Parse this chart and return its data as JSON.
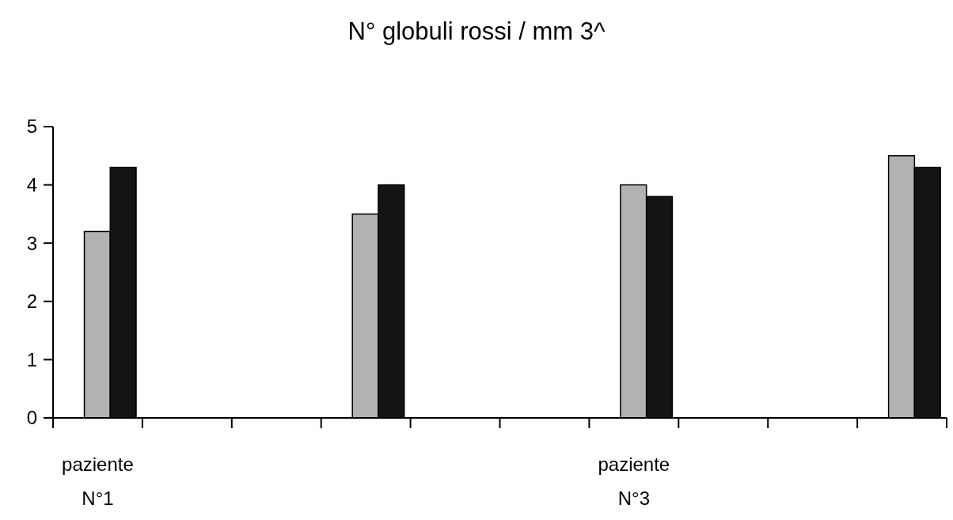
{
  "chart_data": {
    "type": "bar",
    "title": "N° globuli rossi / mm 3^",
    "categories": [
      "paziente N°1",
      null,
      null,
      null,
      null,
      null,
      "paziente N°3",
      null,
      null,
      null
    ],
    "series": [
      {
        "color": "#b2b2b2",
        "values": [
          3.2,
          null,
          null,
          3.5,
          null,
          null,
          4.0,
          null,
          null,
          4.5
        ]
      },
      {
        "color": "#141414",
        "values": [
          4.3,
          null,
          null,
          4.0,
          null,
          null,
          3.8,
          null,
          null,
          4.3
        ]
      }
    ],
    "ylim": [
      0,
      5
    ],
    "yticks": [
      0,
      1,
      2,
      3,
      4,
      5
    ]
  }
}
